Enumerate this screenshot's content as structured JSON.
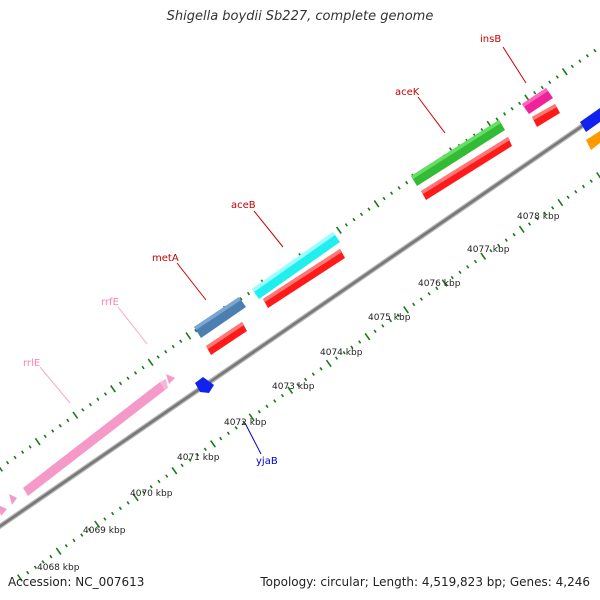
{
  "title": "Shigella boydii Sb227, complete genome",
  "accession": "Accession: NC_007613",
  "topology": "Topology: circular; Length: 4,519,823 bp; Genes: 4,246",
  "scale_labels": [
    "4068 kbp",
    "4069 kbp",
    "4070 kbp",
    "4071 kbp",
    "4072 kbp",
    "4073 kbp",
    "4074 kbp",
    "4075 kbp",
    "4076 kbp",
    "4077 kbp",
    "4078 kbp"
  ],
  "genes": [
    {
      "name": "insB",
      "color": "#cc0000"
    },
    {
      "name": "aceK",
      "color": "#cc0000"
    },
    {
      "name": "aceB",
      "color": "#cc0000"
    },
    {
      "name": "metA",
      "color": "#cc0000"
    },
    {
      "name": "rrfE",
      "color": "#ff7fb8"
    },
    {
      "name": "rrlE",
      "color": "#ff7fb8"
    },
    {
      "name": "yjaB",
      "color": "#0000cc"
    }
  ],
  "colors": {
    "backbone": "#888888",
    "tick": "#1a7a1a",
    "rrna": "#f59ac8",
    "gene_red": "#ff1a1a",
    "acek": "#33bb33",
    "aceb": "#22eeee",
    "meta": "#4a7fb0",
    "insb": "#ee2299",
    "blue": "#1122ee",
    "orange": "#ff9900"
  }
}
